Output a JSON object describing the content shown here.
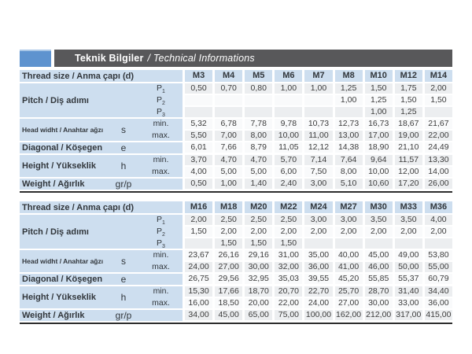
{
  "header": {
    "title_bold": "Teknik Bilgiler",
    "title_italic": "/ Technical Informations"
  },
  "colors": {
    "accent_blue": "#5e93cf",
    "bar_gray": "#58585a",
    "label_blue": "#cddeef",
    "stripe_gray": "#eceef0",
    "stripe_light": "#f9fafb",
    "rule_dark": "#2d2d2d",
    "text": "#3c3c3c"
  },
  "tables": [
    {
      "thread_label": "Thread size / Anma çapı (d)",
      "columns": [
        "M3",
        "M4",
        "M5",
        "M6",
        "M7",
        "M8",
        "M10",
        "M12",
        "M14"
      ],
      "blocks": [
        {
          "label": "Pitch / Diş adımı",
          "label_size": "normal",
          "symbol": "",
          "rows": [
            {
              "sub": "P",
              "sub_index": "1",
              "values": [
                "0,50",
                "0,70",
                "0,80",
                "1,00",
                "1,00",
                "1,25",
                "1,50",
                "1,75",
                "2,00"
              ]
            },
            {
              "sub": "P",
              "sub_index": "2",
              "values": [
                "",
                "",
                "",
                "",
                "",
                "1,00",
                "1,25",
                "1,50",
                "1,50"
              ]
            },
            {
              "sub": "P",
              "sub_index": "3",
              "values": [
                "",
                "",
                "",
                "",
                "",
                "",
                "1,00",
                "1,25",
                ""
              ]
            }
          ]
        },
        {
          "label": "Head widht / Anahtar ağzı",
          "label_size": "small",
          "symbol": "s",
          "rows": [
            {
              "sub": "min.",
              "values": [
                "5,32",
                "6,78",
                "7,78",
                "9,78",
                "10,73",
                "12,73",
                "16,73",
                "18,67",
                "21,67"
              ]
            },
            {
              "sub": "max.",
              "values": [
                "5,50",
                "7,00",
                "8,00",
                "10,00",
                "11,00",
                "13,00",
                "17,00",
                "19,00",
                "22,00"
              ]
            }
          ]
        },
        {
          "label": "Diagonal / Köşegen",
          "label_size": "normal",
          "symbol": "e",
          "rows": [
            {
              "sub": "",
              "values": [
                "6,01",
                "7,66",
                "8,79",
                "11,05",
                "12,12",
                "14,38",
                "18,90",
                "21,10",
                "24,49"
              ]
            }
          ]
        },
        {
          "label": "Height / Yükseklik",
          "label_size": "normal",
          "symbol": "h",
          "rows": [
            {
              "sub": "min.",
              "values": [
                "3,70",
                "4,70",
                "4,70",
                "5,70",
                "7,14",
                "7,64",
                "9,64",
                "11,57",
                "13,30"
              ]
            },
            {
              "sub": "max.",
              "values": [
                "4,00",
                "5,00",
                "5,00",
                "6,00",
                "7,50",
                "8,00",
                "10,00",
                "12,00",
                "14,00"
              ]
            }
          ]
        },
        {
          "label": "Weight / Ağırlık",
          "label_size": "normal",
          "symbol": "gr/p",
          "rows": [
            {
              "sub": "",
              "values": [
                "0,50",
                "1,00",
                "1,40",
                "2,40",
                "3,00",
                "5,10",
                "10,60",
                "17,20",
                "26,00"
              ]
            }
          ]
        }
      ]
    },
    {
      "thread_label": "Thread size / Anma çapı (d)",
      "columns": [
        "M16",
        "M18",
        "M20",
        "M22",
        "M24",
        "M27",
        "M30",
        "M33",
        "M36"
      ],
      "blocks": [
        {
          "label": "Pitch / Diş adımı",
          "label_size": "normal",
          "symbol": "",
          "rows": [
            {
              "sub": "P",
              "sub_index": "1",
              "values": [
                "2,00",
                "2,50",
                "2,50",
                "2,50",
                "3,00",
                "3,00",
                "3,50",
                "3,50",
                "4,00"
              ]
            },
            {
              "sub": "P",
              "sub_index": "2",
              "values": [
                "1,50",
                "2,00",
                "2,00",
                "2,00",
                "2,00",
                "2,00",
                "2,00",
                "2,00",
                "2,00"
              ]
            },
            {
              "sub": "P",
              "sub_index": "3",
              "values": [
                "",
                "1,50",
                "1,50",
                "1,50",
                "",
                "",
                "",
                "",
                ""
              ]
            }
          ]
        },
        {
          "label": "Head widht / Anahtar ağzı",
          "label_size": "small",
          "symbol": "s",
          "rows": [
            {
              "sub": "min.",
              "values": [
                "23,67",
                "26,16",
                "29,16",
                "31,00",
                "35,00",
                "40,00",
                "45,00",
                "49,00",
                "53,80"
              ]
            },
            {
              "sub": "max.",
              "values": [
                "24,00",
                "27,00",
                "30,00",
                "32,00",
                "36,00",
                "41,00",
                "46,00",
                "50,00",
                "55,00"
              ]
            }
          ]
        },
        {
          "label": "Diagonal / Köşegen",
          "label_size": "normal",
          "symbol": "e",
          "rows": [
            {
              "sub": "",
              "values": [
                "26,75",
                "29,56",
                "32,95",
                "35,03",
                "39,55",
                "45,20",
                "55,85",
                "55,37",
                "60,79"
              ]
            }
          ]
        },
        {
          "label": "Height / Yükseklik",
          "label_size": "normal",
          "symbol": "h",
          "rows": [
            {
              "sub": "min.",
              "values": [
                "15,30",
                "17,66",
                "18,70",
                "20,70",
                "22,70",
                "25,70",
                "28,70",
                "31,40",
                "34,40"
              ]
            },
            {
              "sub": "max.",
              "values": [
                "16,00",
                "18,50",
                "20,00",
                "22,00",
                "24,00",
                "27,00",
                "30,00",
                "33,00",
                "36,00"
              ]
            }
          ]
        },
        {
          "label": "Weight / Ağırlık",
          "label_size": "normal",
          "symbol": "gr/p",
          "rows": [
            {
              "sub": "",
              "values": [
                "34,00",
                "45,00",
                "65,00",
                "75,00",
                "100,00",
                "162,00",
                "212,00",
                "317,00",
                "415,00"
              ]
            }
          ]
        }
      ]
    }
  ]
}
